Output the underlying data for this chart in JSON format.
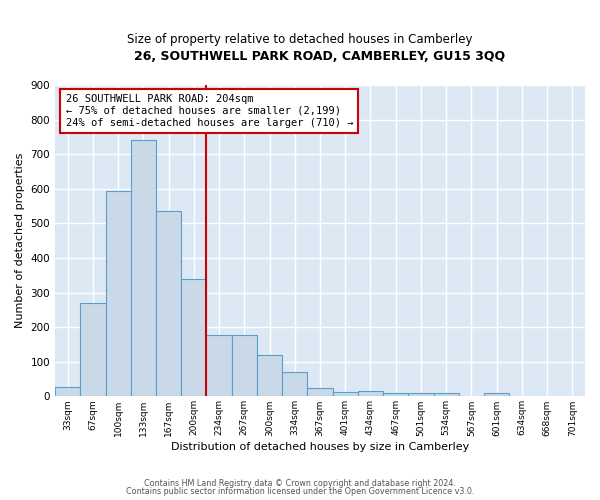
{
  "title": "26, SOUTHWELL PARK ROAD, CAMBERLEY, GU15 3QQ",
  "subtitle": "Size of property relative to detached houses in Camberley",
  "xlabel": "Distribution of detached houses by size in Camberley",
  "ylabel": "Number of detached properties",
  "categories": [
    "33sqm",
    "67sqm",
    "100sqm",
    "133sqm",
    "167sqm",
    "200sqm",
    "234sqm",
    "267sqm",
    "300sqm",
    "334sqm",
    "367sqm",
    "401sqm",
    "434sqm",
    "467sqm",
    "501sqm",
    "534sqm",
    "567sqm",
    "601sqm",
    "634sqm",
    "668sqm",
    "701sqm"
  ],
  "values": [
    27,
    270,
    595,
    740,
    535,
    340,
    178,
    178,
    120,
    70,
    25,
    13,
    15,
    10,
    10,
    10,
    0,
    10,
    0,
    0,
    0
  ],
  "bar_color": "#c9d9e8",
  "bar_edge_color": "#5a9ec9",
  "plot_bg_color": "#dce9f5",
  "fig_bg_color": "#ffffff",
  "grid_color": "#ffffff",
  "annotation_box_color": "#ffffff",
  "annotation_border_color": "#cc0000",
  "red_line_x": 5.5,
  "annotation_text_line1": "26 SOUTHWELL PARK ROAD: 204sqm",
  "annotation_text_line2": "← 75% of detached houses are smaller (2,199)",
  "annotation_text_line3": "24% of semi-detached houses are larger (710) →",
  "ylim": [
    0,
    900
  ],
  "yticks": [
    0,
    100,
    200,
    300,
    400,
    500,
    600,
    700,
    800,
    900
  ],
  "footer1": "Contains HM Land Registry data © Crown copyright and database right 2024.",
  "footer2": "Contains public sector information licensed under the Open Government Licence v3.0."
}
